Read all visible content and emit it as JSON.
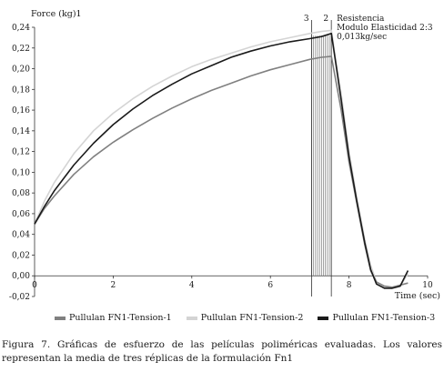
{
  "chart_data": {
    "type": "line",
    "ylabel": "Force (kg)1",
    "xlabel": "Time (sec)",
    "xlim": [
      0,
      10
    ],
    "ylim": [
      -0.02,
      0.24
    ],
    "x_ticks": [
      0,
      2,
      4,
      6,
      8,
      10
    ],
    "y_ticks": [
      "-0,02",
      "0,00",
      "0,02",
      "0,04",
      "0,06",
      "0,08",
      "0,10",
      "0,12",
      "0,14",
      "0,16",
      "0,18",
      "0,20",
      "0,22",
      "0,24"
    ],
    "grid": false,
    "legend_position": "bottom",
    "annotations": {
      "marker_3": "3",
      "marker_2": "2",
      "line1": "Resistencia",
      "line2": "Modulo Elasticidad 2:3",
      "line3": "0,013kg/sec"
    },
    "series": [
      {
        "name": "Pullulan FN1-Tension-1",
        "color": "#808080",
        "x": [
          0,
          0.25,
          0.5,
          1,
          1.5,
          2,
          2.5,
          3,
          3.5,
          4,
          4.5,
          5,
          5.5,
          6,
          6.5,
          7,
          7.3,
          7.55,
          7.8,
          8,
          8.2,
          8.4,
          8.55,
          8.7,
          8.9,
          9.1,
          9.3,
          9.5
        ],
        "y": [
          0.05,
          0.065,
          0.077,
          0.098,
          0.115,
          0.129,
          0.141,
          0.152,
          0.162,
          0.171,
          0.179,
          0.186,
          0.193,
          0.199,
          0.204,
          0.209,
          0.211,
          0.212,
          0.16,
          0.11,
          0.07,
          0.03,
          0.005,
          -0.006,
          -0.01,
          -0.011,
          -0.009,
          -0.007
        ]
      },
      {
        "name": "Pullulan FN1-Tension-2",
        "color": "#d4d4d4",
        "x": [
          0,
          0.25,
          0.5,
          1,
          1.5,
          2,
          2.5,
          3,
          3.5,
          4,
          4.5,
          5,
          5.5,
          6,
          6.5,
          7,
          7.3,
          7.55,
          7.8,
          8,
          8.2,
          8.4,
          8.55,
          8.7,
          8.9,
          9.1,
          9.3,
          9.5
        ],
        "y": [
          0.05,
          0.072,
          0.09,
          0.118,
          0.14,
          0.157,
          0.171,
          0.183,
          0.193,
          0.202,
          0.209,
          0.215,
          0.221,
          0.226,
          0.23,
          0.234,
          0.236,
          0.237,
          0.175,
          0.12,
          0.075,
          0.035,
          0.01,
          -0.006,
          -0.011,
          -0.012,
          -0.01,
          0.002
        ]
      },
      {
        "name": "Pullulan FN1-Tension-3",
        "color": "#1a1a1a",
        "x": [
          0,
          0.25,
          0.5,
          1,
          1.5,
          2,
          2.5,
          3,
          3.5,
          4,
          4.5,
          5,
          5.5,
          6,
          6.5,
          7,
          7.3,
          7.55,
          7.8,
          8,
          8.2,
          8.4,
          8.55,
          8.7,
          8.9,
          9.1,
          9.3,
          9.5
        ],
        "y": [
          0.05,
          0.067,
          0.082,
          0.107,
          0.128,
          0.146,
          0.161,
          0.174,
          0.185,
          0.195,
          0.203,
          0.211,
          0.217,
          0.222,
          0.226,
          0.229,
          0.231,
          0.234,
          0.17,
          0.115,
          0.072,
          0.032,
          0.006,
          -0.008,
          -0.012,
          -0.012,
          -0.01,
          0.005
        ]
      }
    ]
  },
  "caption": "Figura 7. Gráficas de esfuerzo de las películas poliméricas evaluadas. Los valores representan la media de tres réplicas de la formulación Fn1"
}
